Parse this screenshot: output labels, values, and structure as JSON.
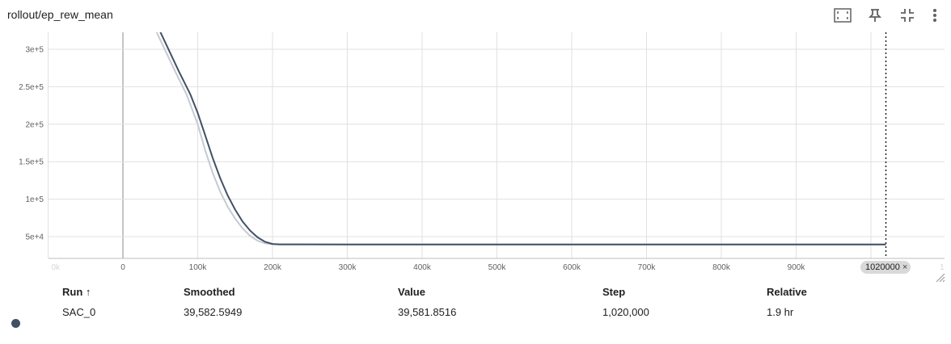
{
  "header": {
    "title": "rollout/ep_rew_mean",
    "icons": [
      "fit-domain-icon",
      "pin-icon",
      "collapse-icon",
      "more-vert-icon"
    ]
  },
  "chart_data": {
    "type": "line",
    "title": "rollout/ep_rew_mean",
    "xlabel": "",
    "ylabel": "",
    "x_ticks": [
      "0",
      "100k",
      "200k",
      "300k",
      "400k",
      "500k",
      "600k",
      "700k",
      "800k",
      "900k"
    ],
    "x_tick_values": [
      0,
      100000,
      200000,
      300000,
      400000,
      500000,
      600000,
      700000,
      800000,
      900000
    ],
    "x_tick_faded": [
      "0k",
      "1"
    ],
    "y_ticks": [
      "5e+4",
      "1e+5",
      "1.5e+5",
      "2e+5",
      "2.5e+5",
      "3e+5"
    ],
    "y_tick_values": [
      50000,
      100000,
      150000,
      200000,
      250000,
      300000
    ],
    "xlim": [
      -100000,
      1100000
    ],
    "ylim": [
      24000,
      323000
    ],
    "grid": true,
    "hover_step": 1020000,
    "hover_label": "1020000",
    "series": [
      {
        "name": "SAC_0",
        "color": "#425066",
        "smoothed": [
          [
            50000,
            323000
          ],
          [
            75000,
            270000
          ],
          [
            90000,
            240000
          ],
          [
            100000,
            215000
          ],
          [
            110000,
            185000
          ],
          [
            120000,
            155000
          ],
          [
            130000,
            128000
          ],
          [
            140000,
            105000
          ],
          [
            150000,
            86000
          ],
          [
            160000,
            70000
          ],
          [
            170000,
            58000
          ],
          [
            180000,
            49000
          ],
          [
            190000,
            43000
          ],
          [
            200000,
            40200
          ],
          [
            210000,
            39700
          ],
          [
            300000,
            39600
          ],
          [
            1020000,
            39583
          ]
        ],
        "raw": [
          [
            45000,
            323000
          ],
          [
            70000,
            270000
          ],
          [
            85000,
            240000
          ],
          [
            100000,
            200000
          ],
          [
            110000,
            165000
          ],
          [
            120000,
            135000
          ],
          [
            130000,
            110000
          ],
          [
            140000,
            90000
          ],
          [
            150000,
            74000
          ],
          [
            160000,
            61000
          ],
          [
            170000,
            51000
          ],
          [
            180000,
            44500
          ],
          [
            190000,
            41000
          ],
          [
            200000,
            39800
          ],
          [
            210000,
            39600
          ],
          [
            1020000,
            39582
          ]
        ]
      }
    ]
  },
  "hover_chip": {
    "label": "1020000",
    "close": "×"
  },
  "table": {
    "headers": {
      "run": "Run ↑",
      "smoothed": "Smoothed",
      "value": "Value",
      "step": "Step",
      "relative": "Relative"
    },
    "rows": [
      {
        "run": "SAC_0",
        "smoothed": "39,582.5949",
        "value": "39,581.8516",
        "step": "1,020,000",
        "relative": "1.9 hr",
        "color": "#425066"
      }
    ]
  }
}
